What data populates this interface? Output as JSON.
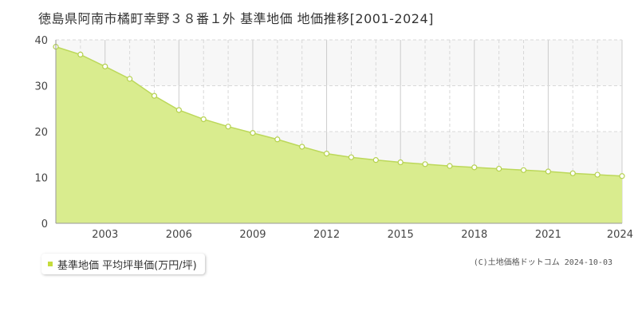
{
  "header": {
    "title": "徳島県阿南市橘町幸野３８番１外 基準地価 地価推移[2001-2024]"
  },
  "legend": {
    "label": "基準地価 平均坪単価(万円/坪)"
  },
  "credit": {
    "text": "(C)土地価格ドットコム 2024-10-03"
  },
  "colors": {
    "fill": "#d9ec8e",
    "line": "#bcd85a",
    "marker_fill": "#ffffff",
    "marker_stroke": "#b5d14f",
    "grid_solid": "#cccccc",
    "grid_dashed": "#d8d8d8",
    "band": "#f7f7f7",
    "axis_text": "#444444",
    "legend_swatch": "#c5dc3c"
  },
  "chart_data": {
    "type": "area",
    "x": [
      2001,
      2002,
      2003,
      2004,
      2005,
      2006,
      2007,
      2008,
      2009,
      2010,
      2011,
      2012,
      2013,
      2014,
      2015,
      2016,
      2017,
      2018,
      2019,
      2020,
      2021,
      2022,
      2023,
      2024
    ],
    "series": [
      {
        "name": "基準地価 平均坪単価(万円/坪)",
        "values": [
          38.5,
          36.8,
          34.2,
          31.5,
          27.8,
          24.7,
          22.7,
          21.1,
          19.7,
          18.3,
          16.7,
          15.2,
          14.4,
          13.8,
          13.3,
          12.9,
          12.5,
          12.2,
          11.9,
          11.6,
          11.3,
          10.9,
          10.6,
          10.3
        ]
      }
    ],
    "xlim": [
      2001,
      2024
    ],
    "ylim": [
      0,
      40
    ],
    "x_ticks": [
      "2003",
      "2006",
      "2009",
      "2012",
      "2015",
      "2018",
      "2021",
      "2024"
    ],
    "y_ticks": [
      "0",
      "10",
      "20",
      "30",
      "40"
    ],
    "grid": true,
    "legend_position": "bottom-left"
  }
}
